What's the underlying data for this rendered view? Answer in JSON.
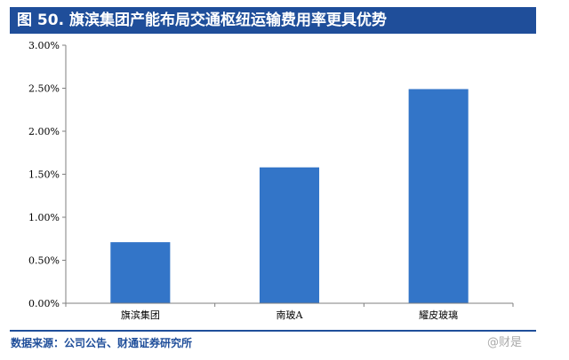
{
  "header": {
    "title": "图 50. 旗滨集团产能布局交通枢纽运输费用率更具优势"
  },
  "chart_data": {
    "type": "bar",
    "title": "",
    "xlabel": "",
    "ylabel": "",
    "categories": [
      "旗滨集团",
      "南玻A",
      "耀皮玻璃"
    ],
    "values": [
      0.71,
      1.58,
      2.49
    ],
    "ylim": [
      0,
      3
    ],
    "yticks": [
      0,
      0.5,
      1,
      1.5,
      2,
      2.5,
      3
    ],
    "ytick_labels": [
      "0.00%",
      "0.50%",
      "1.00%",
      "1.50%",
      "2.00%",
      "2.50%",
      "3.00%"
    ],
    "grid": false,
    "legend": "none",
    "bar_color": "#3375c8"
  },
  "footer": {
    "source": "数据来源：公司公告、财通证券研究所"
  },
  "watermark": {
    "text": "@财是"
  }
}
